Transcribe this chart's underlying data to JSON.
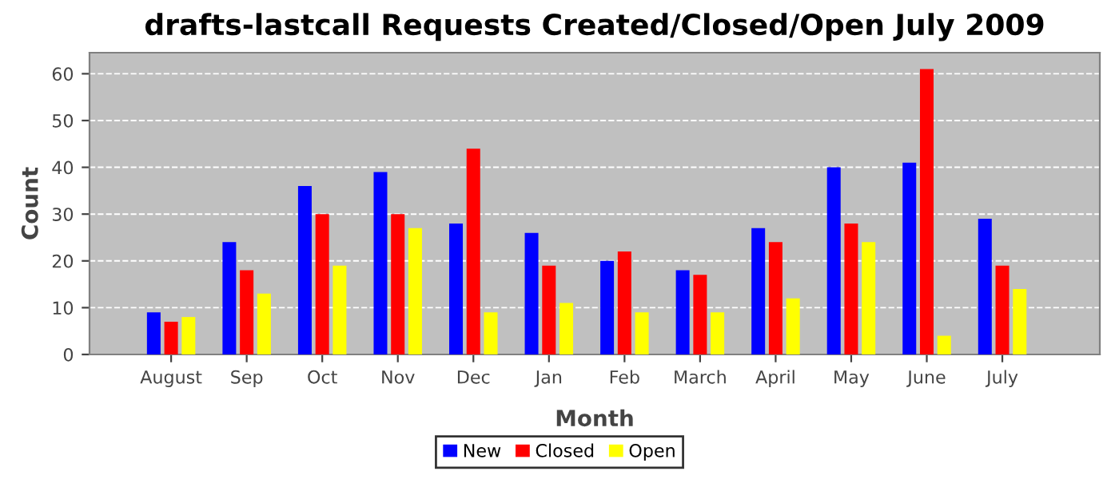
{
  "chart_data": {
    "type": "bar",
    "title": "drafts-lastcall Requests Created/Closed/Open July 2009",
    "xlabel": "Month",
    "ylabel": "Count",
    "categories": [
      "August",
      "Sep",
      "Oct",
      "Nov",
      "Dec",
      "Jan",
      "Feb",
      "March",
      "April",
      "May",
      "June",
      "July"
    ],
    "series": [
      {
        "name": "New",
        "color": "#0000ff",
        "values": [
          9,
          24,
          36,
          39,
          28,
          26,
          20,
          18,
          27,
          40,
          41,
          29
        ]
      },
      {
        "name": "Closed",
        "color": "#ff0000",
        "values": [
          7,
          18,
          30,
          30,
          44,
          19,
          22,
          17,
          24,
          28,
          61,
          19
        ]
      },
      {
        "name": "Open",
        "color": "#ffff00",
        "values": [
          8,
          13,
          19,
          27,
          9,
          11,
          9,
          9,
          12,
          24,
          4,
          14
        ]
      }
    ],
    "ylim": [
      0,
      64.5
    ],
    "yticks": [
      0,
      10,
      20,
      30,
      40,
      50,
      60
    ],
    "grid": "y",
    "legend": "bottom"
  }
}
